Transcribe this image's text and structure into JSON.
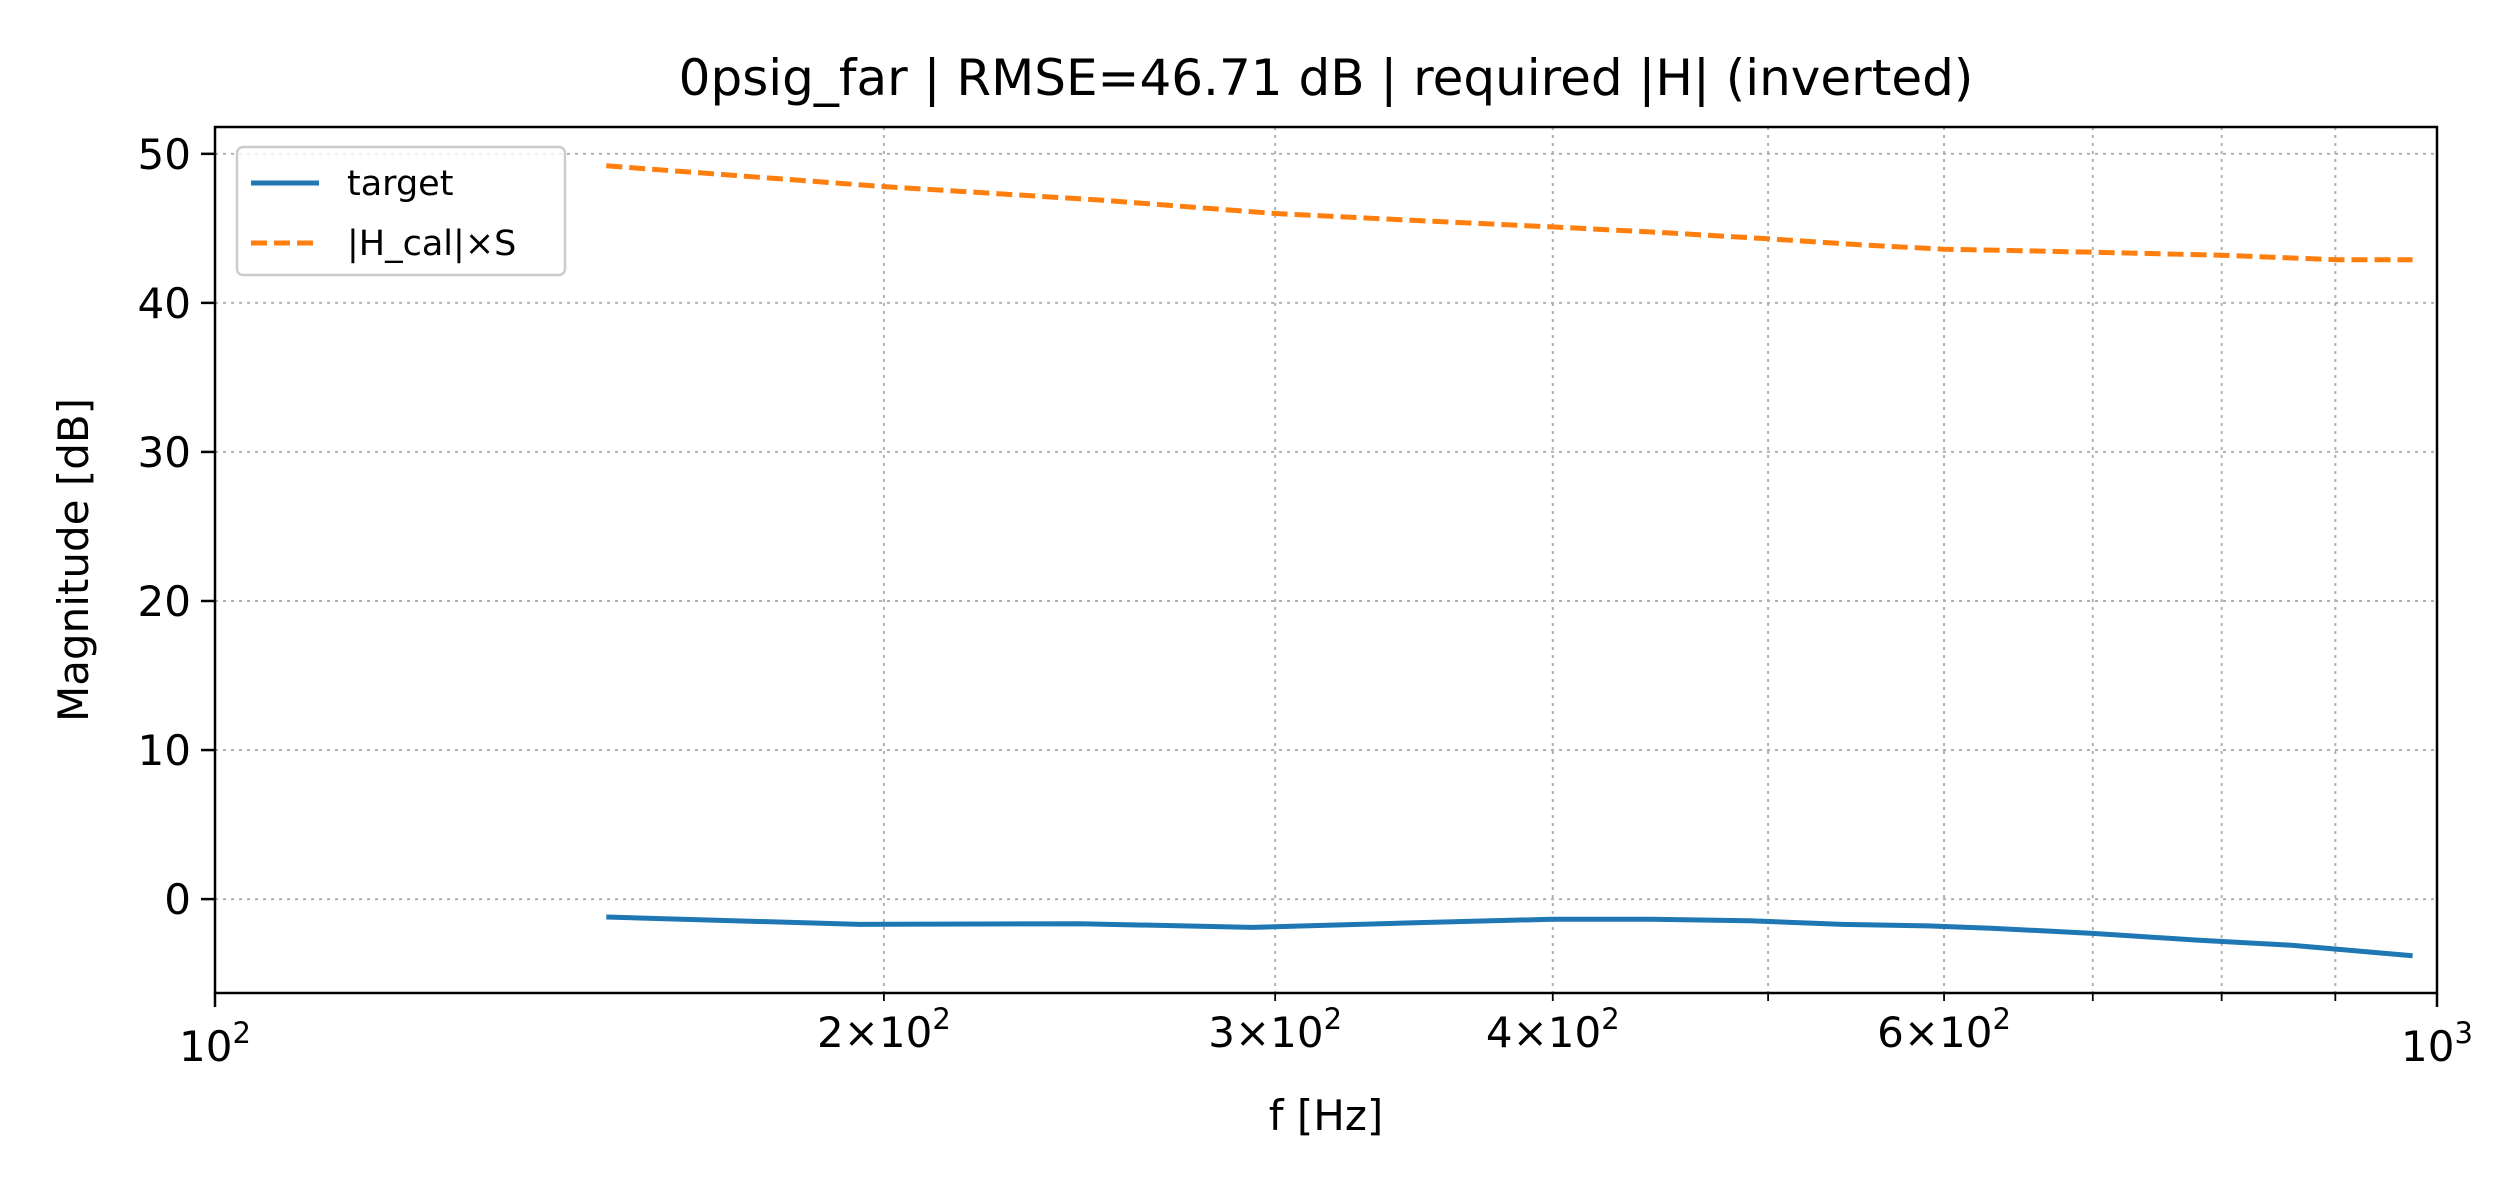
{
  "chart_data": {
    "type": "line",
    "title": "0psig_far | RMSE=46.71 dB | required |H| (inverted)",
    "xlabel": "f [Hz]",
    "ylabel": "Magnitude [dB]",
    "xscale": "log",
    "xlim": [
      100,
      1000
    ],
    "ylim": [
      -6.3,
      51.8
    ],
    "grid": true,
    "legend_position": "top-left",
    "x_major_ticks": [
      {
        "value": 100,
        "base": "10",
        "exp": "2"
      },
      {
        "value": 1000,
        "base": "10",
        "exp": "3"
      }
    ],
    "x_minor_ticks": [
      {
        "value": 200,
        "mant": "2",
        "base": "10",
        "exp": "2"
      },
      {
        "value": 300,
        "mant": "3",
        "base": "10",
        "exp": "2"
      },
      {
        "value": 400,
        "mant": "4",
        "base": "10",
        "exp": "2"
      },
      {
        "value": 600,
        "mant": "6",
        "base": "10",
        "exp": "2"
      }
    ],
    "x_unlabeled_minor_ticks": [
      500,
      700,
      800,
      900
    ],
    "y_ticks": [
      0,
      10,
      20,
      30,
      40,
      50
    ],
    "series": [
      {
        "name": "target",
        "color": "#1f77b4",
        "style": "solid",
        "x": [
          150,
          195,
          245,
          293,
          345,
          400,
          440,
          490,
          540,
          590,
          630,
          700,
          780,
          860,
          975
        ],
        "y": [
          -1.2,
          -1.7,
          -1.65,
          -1.9,
          -1.6,
          -1.35,
          -1.35,
          -1.45,
          -1.7,
          -1.8,
          -1.95,
          -2.3,
          -2.75,
          -3.1,
          -3.8
        ]
      },
      {
        "name": "|H_cal|×S",
        "color": "#ff7f0e",
        "style": "dashed",
        "x": [
          150,
          200,
          250,
          300,
          350,
          400,
          450,
          500,
          550,
          600,
          650,
          700,
          800,
          900,
          975
        ],
        "y": [
          49.2,
          47.8,
          46.9,
          46.0,
          45.5,
          45.1,
          44.7,
          44.3,
          43.9,
          43.6,
          43.5,
          43.4,
          43.2,
          42.9,
          42.9
        ]
      }
    ]
  }
}
